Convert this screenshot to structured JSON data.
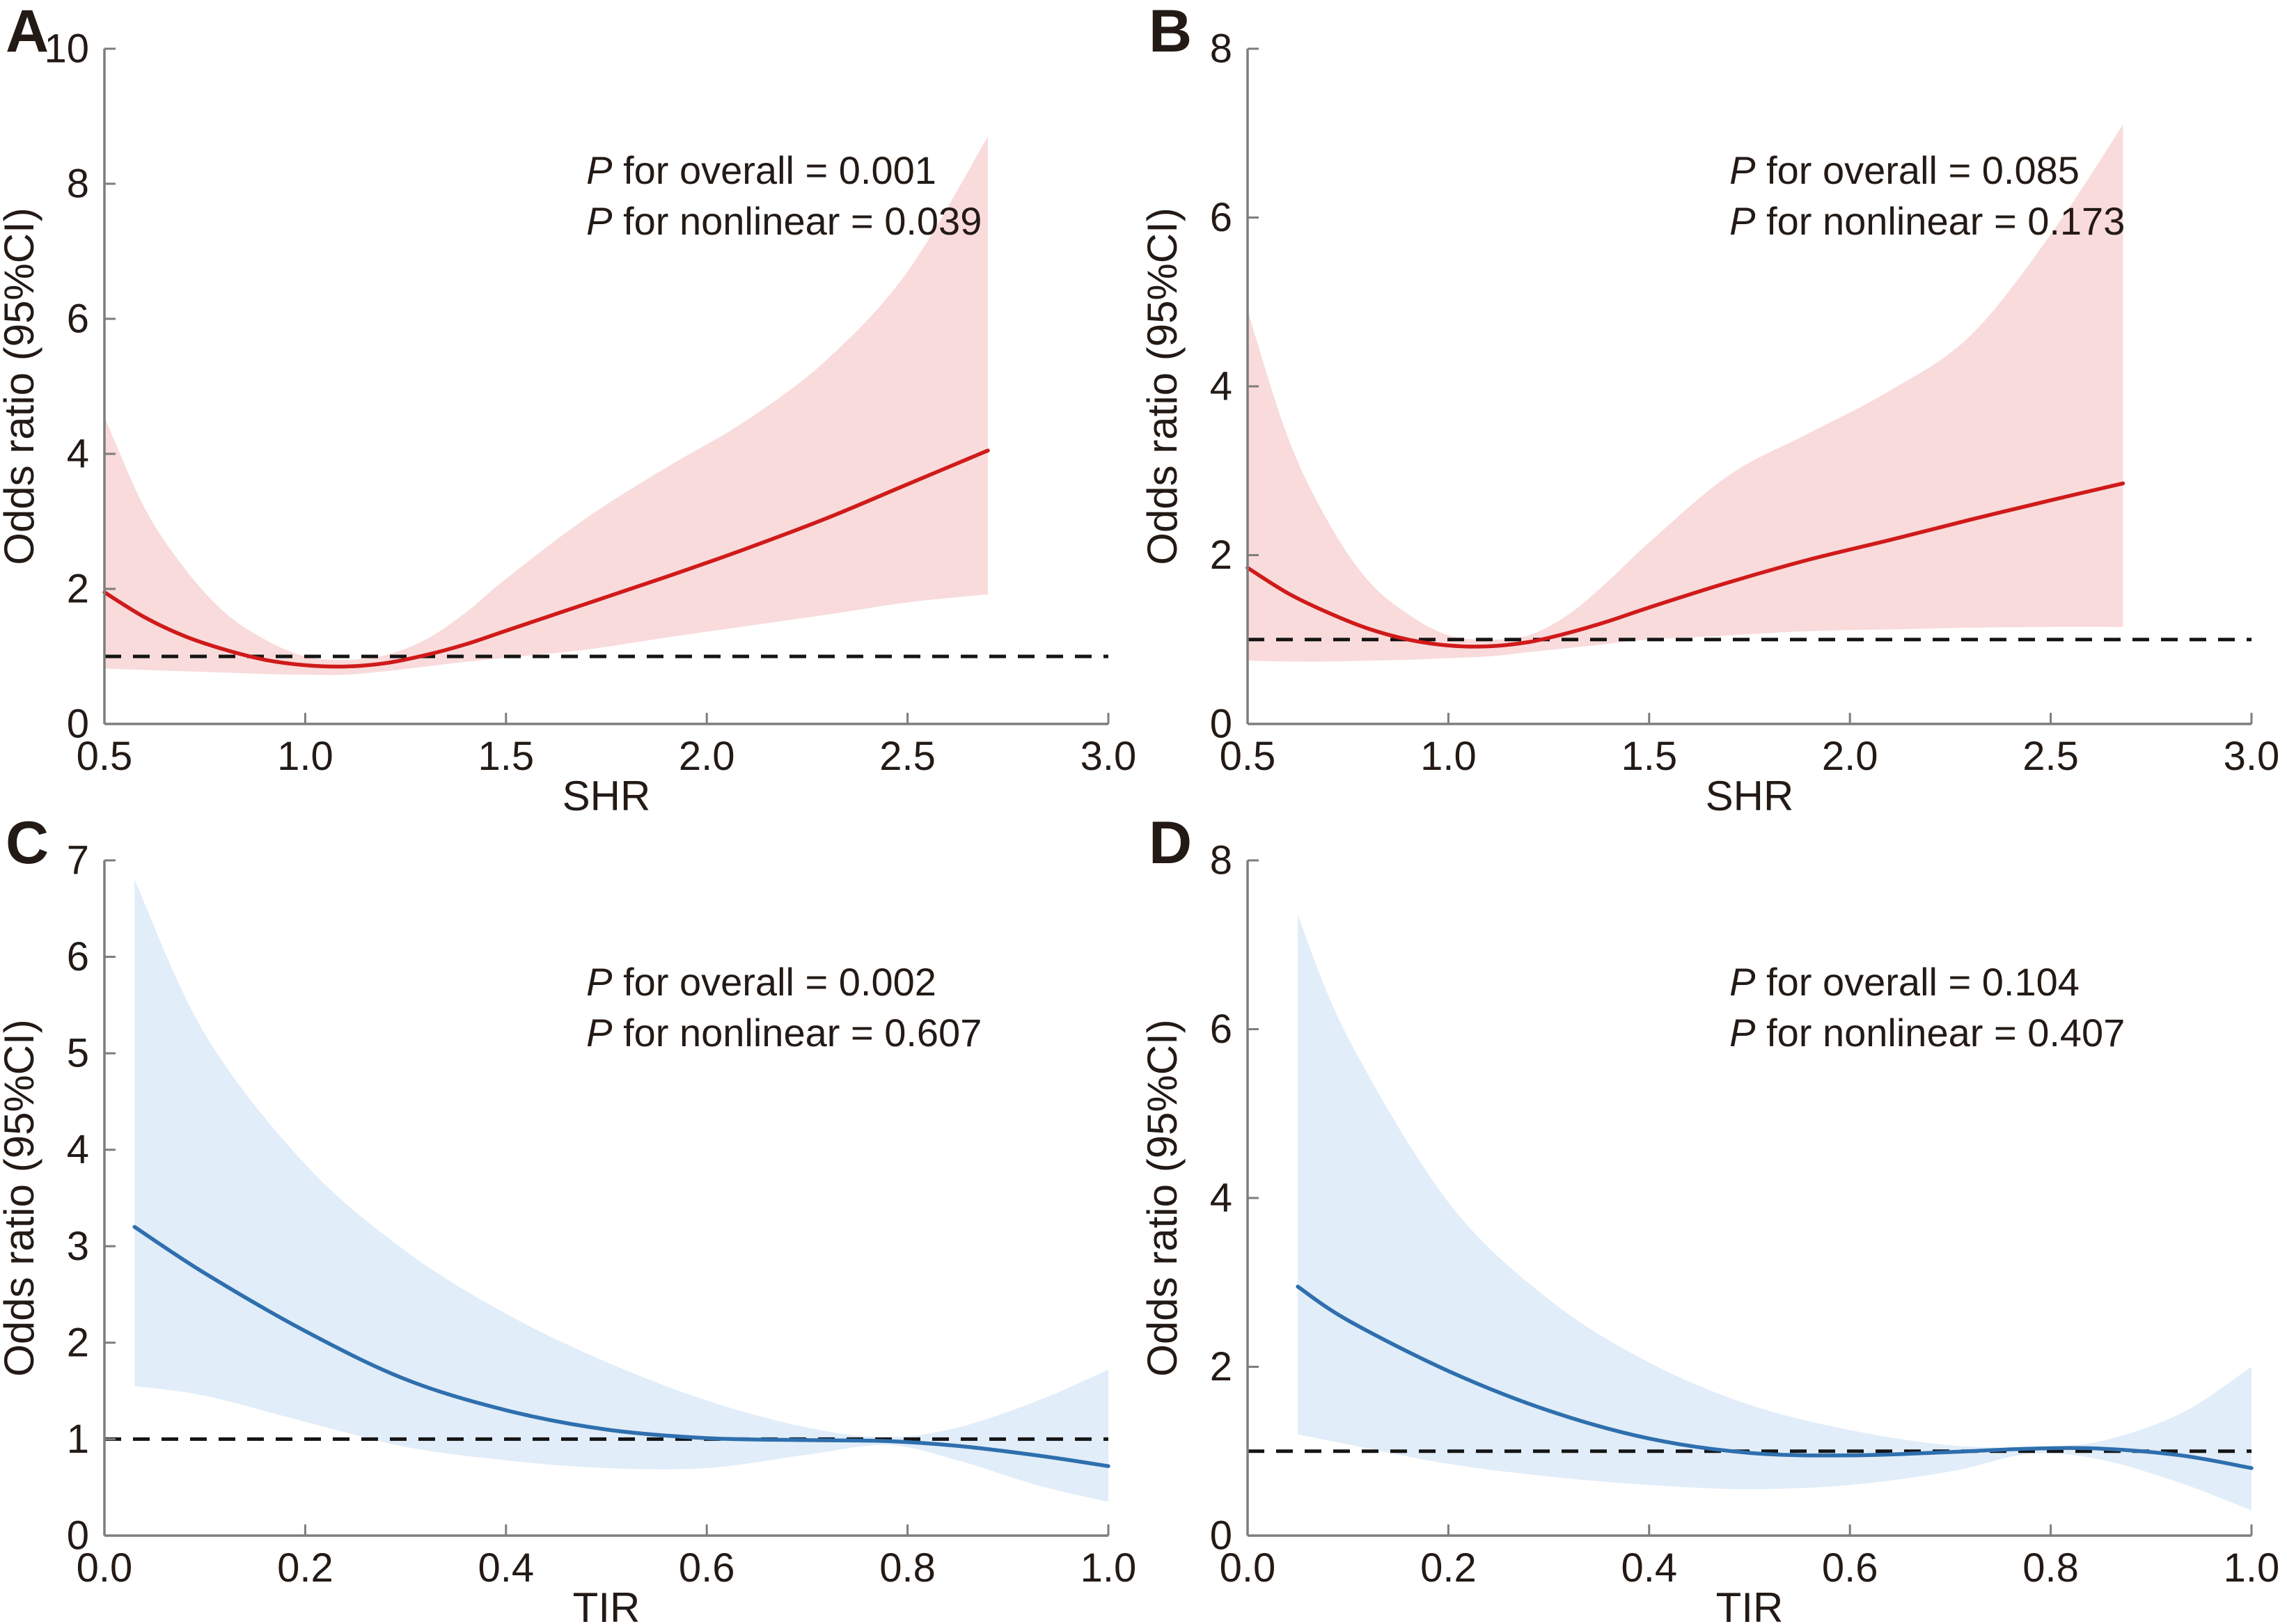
{
  "figure": {
    "ylabel_shared": "Odds ratio (95%CI)"
  },
  "chart_data": [
    {
      "id": "panel-a",
      "panel_label": "A",
      "type": "line",
      "xlabel": "SHR",
      "ylabel": "Odds ratio (95%CI)",
      "xlim": [
        0.5,
        3.0
      ],
      "ylim": [
        0,
        10
      ],
      "x_tick_values": [
        0.5,
        1.0,
        1.5,
        2.0,
        2.5,
        3.0
      ],
      "x_tick_labels": [
        "0.5",
        "1.0",
        "1.5",
        "2.0",
        "2.5",
        "3.0"
      ],
      "y_tick_values": [
        0,
        2,
        4,
        6,
        8,
        10
      ],
      "y_tick_labels": [
        "0",
        "2",
        "4",
        "6",
        "8",
        "10"
      ],
      "reference_line_y": 1,
      "grid": false,
      "line_color": "#d01a1a",
      "band_color": "#f9dbdb",
      "annotations": [
        {
          "italic": "P",
          "text": " for overall = 0.001"
        },
        {
          "italic": "P",
          "text": " for nonlinear = 0.039"
        }
      ],
      "series": {
        "name": "Odds ratio with 95% CI",
        "x": [
          0.5,
          0.6,
          0.7,
          0.8,
          0.9,
          1.0,
          1.1,
          1.2,
          1.3,
          1.4,
          1.5,
          1.7,
          1.9,
          2.1,
          2.3,
          2.5,
          2.7
        ],
        "or": [
          1.95,
          1.58,
          1.3,
          1.1,
          0.95,
          0.87,
          0.85,
          0.9,
          1.02,
          1.18,
          1.38,
          1.78,
          2.18,
          2.6,
          3.05,
          3.55,
          4.05
        ],
        "upper": [
          4.55,
          3.2,
          2.3,
          1.65,
          1.25,
          1.0,
          0.95,
          1.02,
          1.25,
          1.65,
          2.15,
          3.05,
          3.8,
          4.5,
          5.4,
          6.7,
          8.7
        ],
        "lower": [
          0.82,
          0.8,
          0.78,
          0.76,
          0.74,
          0.73,
          0.73,
          0.78,
          0.85,
          0.92,
          0.98,
          1.1,
          1.28,
          1.45,
          1.62,
          1.8,
          1.92
        ]
      }
    },
    {
      "id": "panel-b",
      "panel_label": "B",
      "type": "line",
      "xlabel": "SHR",
      "ylabel": "Odds ratio (95%CI)",
      "xlim": [
        0.5,
        3.0
      ],
      "ylim": [
        0,
        8
      ],
      "x_tick_values": [
        0.5,
        1.0,
        1.5,
        2.0,
        2.5,
        3.0
      ],
      "x_tick_labels": [
        "0.5",
        "1.0",
        "1.5",
        "2.0",
        "2.5",
        "3.0"
      ],
      "y_tick_values": [
        0,
        2,
        4,
        6,
        8
      ],
      "y_tick_labels": [
        "0",
        "2",
        "4",
        "6",
        "8"
      ],
      "reference_line_y": 1,
      "grid": false,
      "line_color": "#d01a1a",
      "band_color": "#f9dbdb",
      "annotations": [
        {
          "italic": "P",
          "text": " for overall = 0.085"
        },
        {
          "italic": "P",
          "text": " for nonlinear = 0.173"
        }
      ],
      "series": {
        "name": "Odds ratio with 95% CI",
        "x": [
          0.5,
          0.6,
          0.7,
          0.8,
          0.9,
          1.0,
          1.1,
          1.2,
          1.3,
          1.4,
          1.5,
          1.7,
          1.9,
          2.1,
          2.3,
          2.5,
          2.68
        ],
        "or": [
          1.85,
          1.55,
          1.32,
          1.13,
          1.0,
          0.93,
          0.92,
          0.97,
          1.08,
          1.22,
          1.38,
          1.68,
          1.95,
          2.18,
          2.42,
          2.65,
          2.85
        ],
        "upper": [
          4.9,
          3.4,
          2.4,
          1.7,
          1.3,
          1.05,
          1.0,
          1.05,
          1.3,
          1.7,
          2.15,
          2.95,
          3.45,
          3.95,
          4.6,
          5.8,
          7.1
        ],
        "lower": [
          0.75,
          0.74,
          0.74,
          0.75,
          0.76,
          0.78,
          0.8,
          0.85,
          0.9,
          0.95,
          1.0,
          1.05,
          1.1,
          1.12,
          1.14,
          1.15,
          1.15
        ]
      }
    },
    {
      "id": "panel-c",
      "panel_label": "C",
      "type": "line",
      "xlabel": "TIR",
      "ylabel": "Odds ratio (95%CI)",
      "xlim": [
        0.0,
        1.0
      ],
      "ylim": [
        0,
        7
      ],
      "x_tick_values": [
        0.0,
        0.2,
        0.4,
        0.6,
        0.8,
        1.0
      ],
      "x_tick_labels": [
        "0.0",
        "0.2",
        "0.4",
        "0.6",
        "0.8",
        "1.0"
      ],
      "y_tick_values": [
        0,
        1,
        2,
        3,
        4,
        5,
        6,
        7
      ],
      "y_tick_labels": [
        "0",
        "1",
        "2",
        "3",
        "4",
        "5",
        "6",
        "7"
      ],
      "reference_line_y": 1,
      "grid": false,
      "line_color": "#2e6fae",
      "band_color": "#e1edf8",
      "annotations": [
        {
          "italic": "P",
          "text": " for overall = 0.002"
        },
        {
          "italic": "P",
          "text": " for nonlinear = 0.607"
        }
      ],
      "series": {
        "name": "Odds ratio with 95% CI",
        "x": [
          0.03,
          0.1,
          0.2,
          0.3,
          0.4,
          0.5,
          0.6,
          0.7,
          0.78,
          0.85,
          0.93,
          1.0
        ],
        "or": [
          3.2,
          2.72,
          2.12,
          1.62,
          1.3,
          1.1,
          1.01,
          0.99,
          0.98,
          0.93,
          0.83,
          0.72
        ],
        "upper": [
          6.8,
          5.2,
          3.85,
          2.95,
          2.3,
          1.8,
          1.4,
          1.12,
          1.02,
          1.12,
          1.4,
          1.72
        ],
        "lower": [
          1.55,
          1.45,
          1.18,
          0.92,
          0.78,
          0.7,
          0.7,
          0.84,
          0.94,
          0.78,
          0.52,
          0.35
        ]
      }
    },
    {
      "id": "panel-d",
      "panel_label": "D",
      "type": "line",
      "xlabel": "TIR",
      "ylabel": "Odds ratio (95%CI)",
      "xlim": [
        0.0,
        1.0
      ],
      "ylim": [
        0,
        8
      ],
      "x_tick_values": [
        0.0,
        0.2,
        0.4,
        0.6,
        0.8,
        1.0
      ],
      "x_tick_labels": [
        "0.0",
        "0.2",
        "0.4",
        "0.6",
        "0.8",
        "1.0"
      ],
      "y_tick_values": [
        0,
        2,
        4,
        6,
        8
      ],
      "y_tick_labels": [
        "0",
        "2",
        "4",
        "6",
        "8"
      ],
      "reference_line_y": 1,
      "grid": false,
      "line_color": "#2e6fae",
      "band_color": "#e1edf8",
      "annotations": [
        {
          "italic": "P",
          "text": " for overall = 0.104"
        },
        {
          "italic": "P",
          "text": " for nonlinear = 0.407"
        }
      ],
      "series": {
        "name": "Odds ratio with 95% CI",
        "x": [
          0.05,
          0.1,
          0.2,
          0.3,
          0.4,
          0.5,
          0.6,
          0.7,
          0.78,
          0.85,
          0.93,
          1.0
        ],
        "or": [
          2.95,
          2.55,
          1.95,
          1.48,
          1.15,
          0.98,
          0.95,
          0.99,
          1.03,
          1.03,
          0.95,
          0.8
        ],
        "upper": [
          7.35,
          5.9,
          3.95,
          2.8,
          2.05,
          1.55,
          1.25,
          1.07,
          1.05,
          1.12,
          1.45,
          2.0
        ],
        "lower": [
          1.2,
          1.08,
          0.85,
          0.7,
          0.6,
          0.55,
          0.6,
          0.76,
          0.97,
          0.9,
          0.62,
          0.3
        ]
      }
    }
  ],
  "style": {
    "axis_color": "#7d7d7d",
    "text_color": "#231a15",
    "reference_line_color": "#141414"
  }
}
